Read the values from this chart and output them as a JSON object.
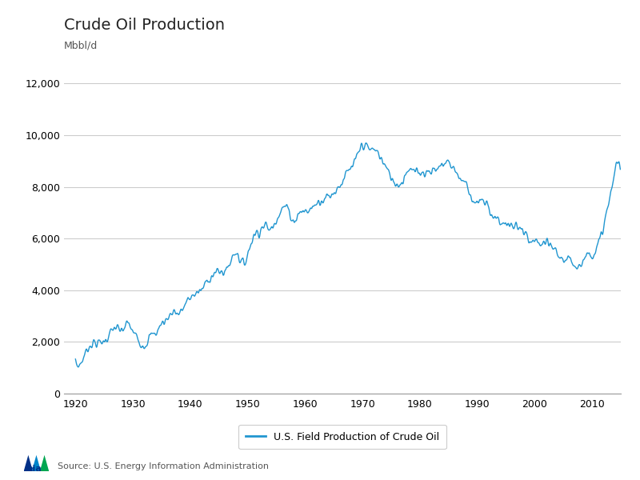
{
  "title": "Crude Oil Production",
  "ylabel": "Mbbl/d",
  "legend_label": "U.S. Field Production of Crude Oil",
  "line_color": "#2196d0",
  "background_color": "#ffffff",
  "grid_color": "#cccccc",
  "ylim": [
    0,
    13000
  ],
  "yticks": [
    0,
    2000,
    4000,
    6000,
    8000,
    10000,
    12000
  ],
  "xlim": [
    1918,
    2015
  ],
  "xticks": [
    1920,
    1930,
    1940,
    1950,
    1960,
    1970,
    1980,
    1990,
    2000,
    2010
  ],
  "source_text": "Source: U.S. Energy Information Administration",
  "title_fontsize": 14,
  "axis_label_fontsize": 9,
  "tick_fontsize": 9,
  "line_width": 1.0,
  "anchors_years": [
    1920.0,
    1921.5,
    1922,
    1923,
    1924,
    1925,
    1926,
    1927,
    1928,
    1929,
    1930,
    1931,
    1932,
    1933,
    1934,
    1935,
    1936,
    1937,
    1938,
    1939,
    1940,
    1941,
    1942,
    1943,
    1944,
    1945,
    1946,
    1947,
    1948,
    1949,
    1950,
    1951,
    1952,
    1953,
    1954,
    1955,
    1956,
    1957,
    1958,
    1959,
    1960,
    1961,
    1962,
    1963,
    1964,
    1965,
    1966,
    1967,
    1968,
    1969,
    1970,
    1971,
    1972,
    1973,
    1974,
    1975,
    1976,
    1977,
    1978,
    1979,
    1980,
    1981,
    1982,
    1983,
    1984,
    1985,
    1986,
    1987,
    1988,
    1989,
    1990,
    1991,
    1992,
    1993,
    1994,
    1995,
    1996,
    1997,
    1998,
    1999,
    2000,
    2001,
    2002,
    2003,
    2004,
    2005,
    2006,
    2007,
    2008,
    2009,
    2010,
    2011,
    2012,
    2013,
    2014,
    2014.917
  ],
  "anchors_vals": [
    1200,
    1450,
    1700,
    1950,
    1950,
    2050,
    2300,
    2550,
    2400,
    2700,
    2400,
    2100,
    1900,
    2200,
    2350,
    2700,
    2900,
    3200,
    3100,
    3400,
    3700,
    3900,
    4000,
    4400,
    4600,
    4700,
    4750,
    5100,
    5500,
    5050,
    5400,
    6100,
    6300,
    6500,
    6350,
    6800,
    7150,
    7150,
    6700,
    7000,
    7035,
    7150,
    7380,
    7540,
    7620,
    7800,
    8050,
    8400,
    8700,
    9100,
    9637,
    9462,
    9441,
    9208,
    8774,
    8375,
    8132,
    8245,
    8707,
    8552,
    8597,
    8572,
    8649,
    8688,
    8879,
    8971,
    8680,
    8349,
    8140,
    7613,
    7355,
    7417,
    7171,
    6847,
    6662,
    6560,
    6465,
    6452,
    6252,
    5881,
    5822,
    5801,
    5746,
    5681,
    5419,
    5178,
    5102,
    5064,
    5000,
    5351,
    5471,
    5673,
    6497,
    7447,
    8653,
    8700
  ]
}
